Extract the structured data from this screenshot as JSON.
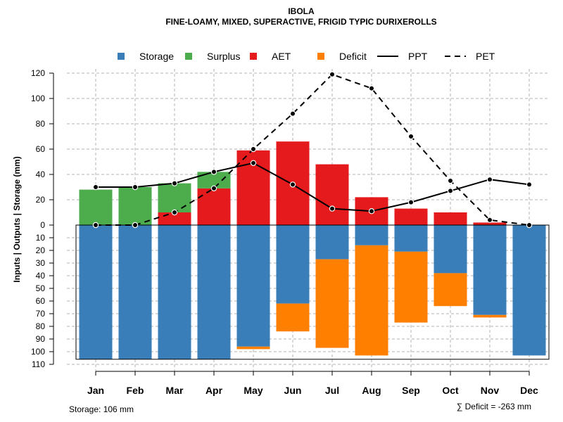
{
  "chart_data": {
    "type": "bar",
    "title": "IBOLA",
    "subtitle": "FINE-LOAMY, MIXED, SUPERACTIVE, FRIGID TYPIC DURIXEROLLS",
    "ylabel": "Inputs | Outputs | Storage    (mm)",
    "ylim": [
      -110,
      120
    ],
    "yticks_upper": [
      0,
      20,
      40,
      60,
      80,
      100,
      120
    ],
    "yticks_lower": [
      10,
      20,
      30,
      40,
      50,
      60,
      70,
      80,
      90,
      100,
      110
    ],
    "grid": true,
    "legend": {
      "position": "top",
      "entries": [
        {
          "label": "Storage",
          "kind": "box",
          "color": "#3A7EB9"
        },
        {
          "label": "Surplus",
          "kind": "box",
          "color": "#4DAD4D"
        },
        {
          "label": "AET",
          "kind": "box",
          "color": "#E41A1C"
        },
        {
          "label": "Deficit",
          "kind": "box",
          "color": "#FF7F00"
        },
        {
          "label": "PPT",
          "kind": "solid"
        },
        {
          "label": "PET",
          "kind": "dashed"
        }
      ]
    },
    "categories": [
      "Jan",
      "Feb",
      "Mar",
      "Apr",
      "May",
      "Jun",
      "Jul",
      "Aug",
      "Sep",
      "Oct",
      "Nov",
      "Dec"
    ],
    "series": [
      {
        "name": "AET",
        "color": "#E41A1C",
        "values": [
          0,
          0,
          10,
          29,
          59,
          66,
          48,
          22,
          13,
          10,
          2,
          0
        ]
      },
      {
        "name": "Surplus",
        "color": "#4DAD4D",
        "values": [
          28,
          30,
          23,
          13,
          0,
          0,
          0,
          0,
          0,
          0,
          0,
          0
        ]
      },
      {
        "name": "Storage",
        "color": "#3A7EB9",
        "values": [
          106,
          106,
          106,
          106,
          96,
          62,
          27,
          16,
          21,
          38,
          71,
          103
        ]
      },
      {
        "name": "Deficit",
        "color": "#FF7F00",
        "values": [
          0,
          0,
          0,
          0,
          2,
          22,
          70,
          87,
          56,
          26,
          2,
          0
        ]
      },
      {
        "name": "PPT",
        "style": "solid",
        "values": [
          30,
          30,
          33,
          42,
          49,
          32,
          13,
          11,
          18,
          27,
          36,
          32
        ]
      },
      {
        "name": "PET",
        "style": "dashed",
        "values": [
          0,
          0,
          10,
          29,
          60,
          88,
          119,
          108,
          70,
          35,
          4,
          0
        ]
      }
    ],
    "storage_label": "Storage: 106 mm",
    "deficit_label": "∑ Deficit = -263 mm"
  }
}
